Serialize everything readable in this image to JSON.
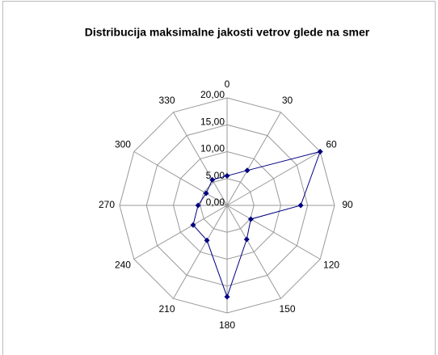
{
  "chart_data": {
    "type": "radar",
    "title": "Distribucija maksimalne jakosti vetrov glede na smer",
    "categories": [
      "0",
      "30",
      "60",
      "90",
      "120",
      "150",
      "180",
      "210",
      "240",
      "270",
      "300",
      "330"
    ],
    "values": [
      5.5,
      7.5,
      20,
      13.7,
      5.1,
      7.3,
      17,
      7.5,
      7.3,
      5.4,
      4.5,
      5.5
    ],
    "color": "#000080",
    "ylim": [
      0,
      20
    ],
    "yticks": [
      {
        "value": 0,
        "label": "0,00"
      },
      {
        "value": 5,
        "label": "5,00"
      },
      {
        "value": 10,
        "label": "10,00"
      },
      {
        "value": 15,
        "label": "15,00"
      },
      {
        "value": 20,
        "label": "20,00"
      }
    ],
    "grid": true
  }
}
